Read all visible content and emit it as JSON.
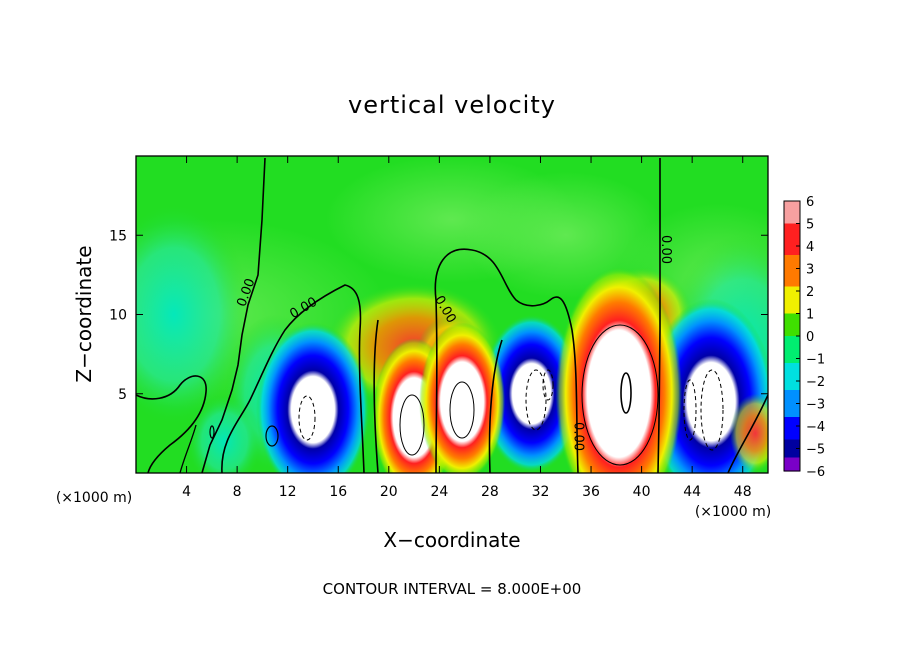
{
  "chart_data": {
    "type": "heatmap",
    "title": "vertical velocity",
    "xlabel": "X−coordinate",
    "ylabel": "Z−coordinate",
    "x_unit": "(×1000 m)",
    "xlim": [
      0,
      50
    ],
    "ylim": [
      0,
      20
    ],
    "x_ticks": [
      4,
      8,
      12,
      16,
      20,
      24,
      28,
      32,
      36,
      40,
      44,
      48
    ],
    "y_ticks": [
      5,
      10,
      15
    ],
    "colorbar": {
      "range": [
        -6,
        6
      ],
      "ticks": [
        "6",
        "5",
        "4",
        "3",
        "2",
        "1",
        "0",
        "−1",
        "−2",
        "−3",
        "−4",
        "−5",
        "−6"
      ]
    },
    "contour_labels": [
      {
        "text": "0.00",
        "x": 9.0,
        "y": 11.3,
        "angle": -70
      },
      {
        "text": "0.00",
        "x": 13.4,
        "y": 10.2,
        "angle": -30
      },
      {
        "text": "0.00",
        "x": 24.2,
        "y": 10.2,
        "angle": 60
      },
      {
        "text": "0.00",
        "x": 34.7,
        "y": 2.3,
        "angle": 90
      },
      {
        "text": "0.00",
        "x": 41.6,
        "y": 14.1,
        "angle": 90
      }
    ],
    "contour_interval_text": "CONTOUR INTERVAL = 8.000E+00",
    "features": [
      {
        "type": "updraft",
        "x": 22,
        "z": 3.5,
        "peak": 8
      },
      {
        "type": "updraft",
        "x": 25.8,
        "z": 4.5,
        "peak": 7
      },
      {
        "type": "updraft",
        "x": 38.2,
        "z": 5.2,
        "peak": 14
      },
      {
        "type": "downdraft",
        "x": 14.0,
        "z": 4.0,
        "peak": -8
      },
      {
        "type": "downdraft",
        "x": 31.3,
        "z": 5.0,
        "peak": -8
      },
      {
        "type": "downdraft",
        "x": 45.5,
        "z": 4.5,
        "peak": -9
      }
    ]
  }
}
